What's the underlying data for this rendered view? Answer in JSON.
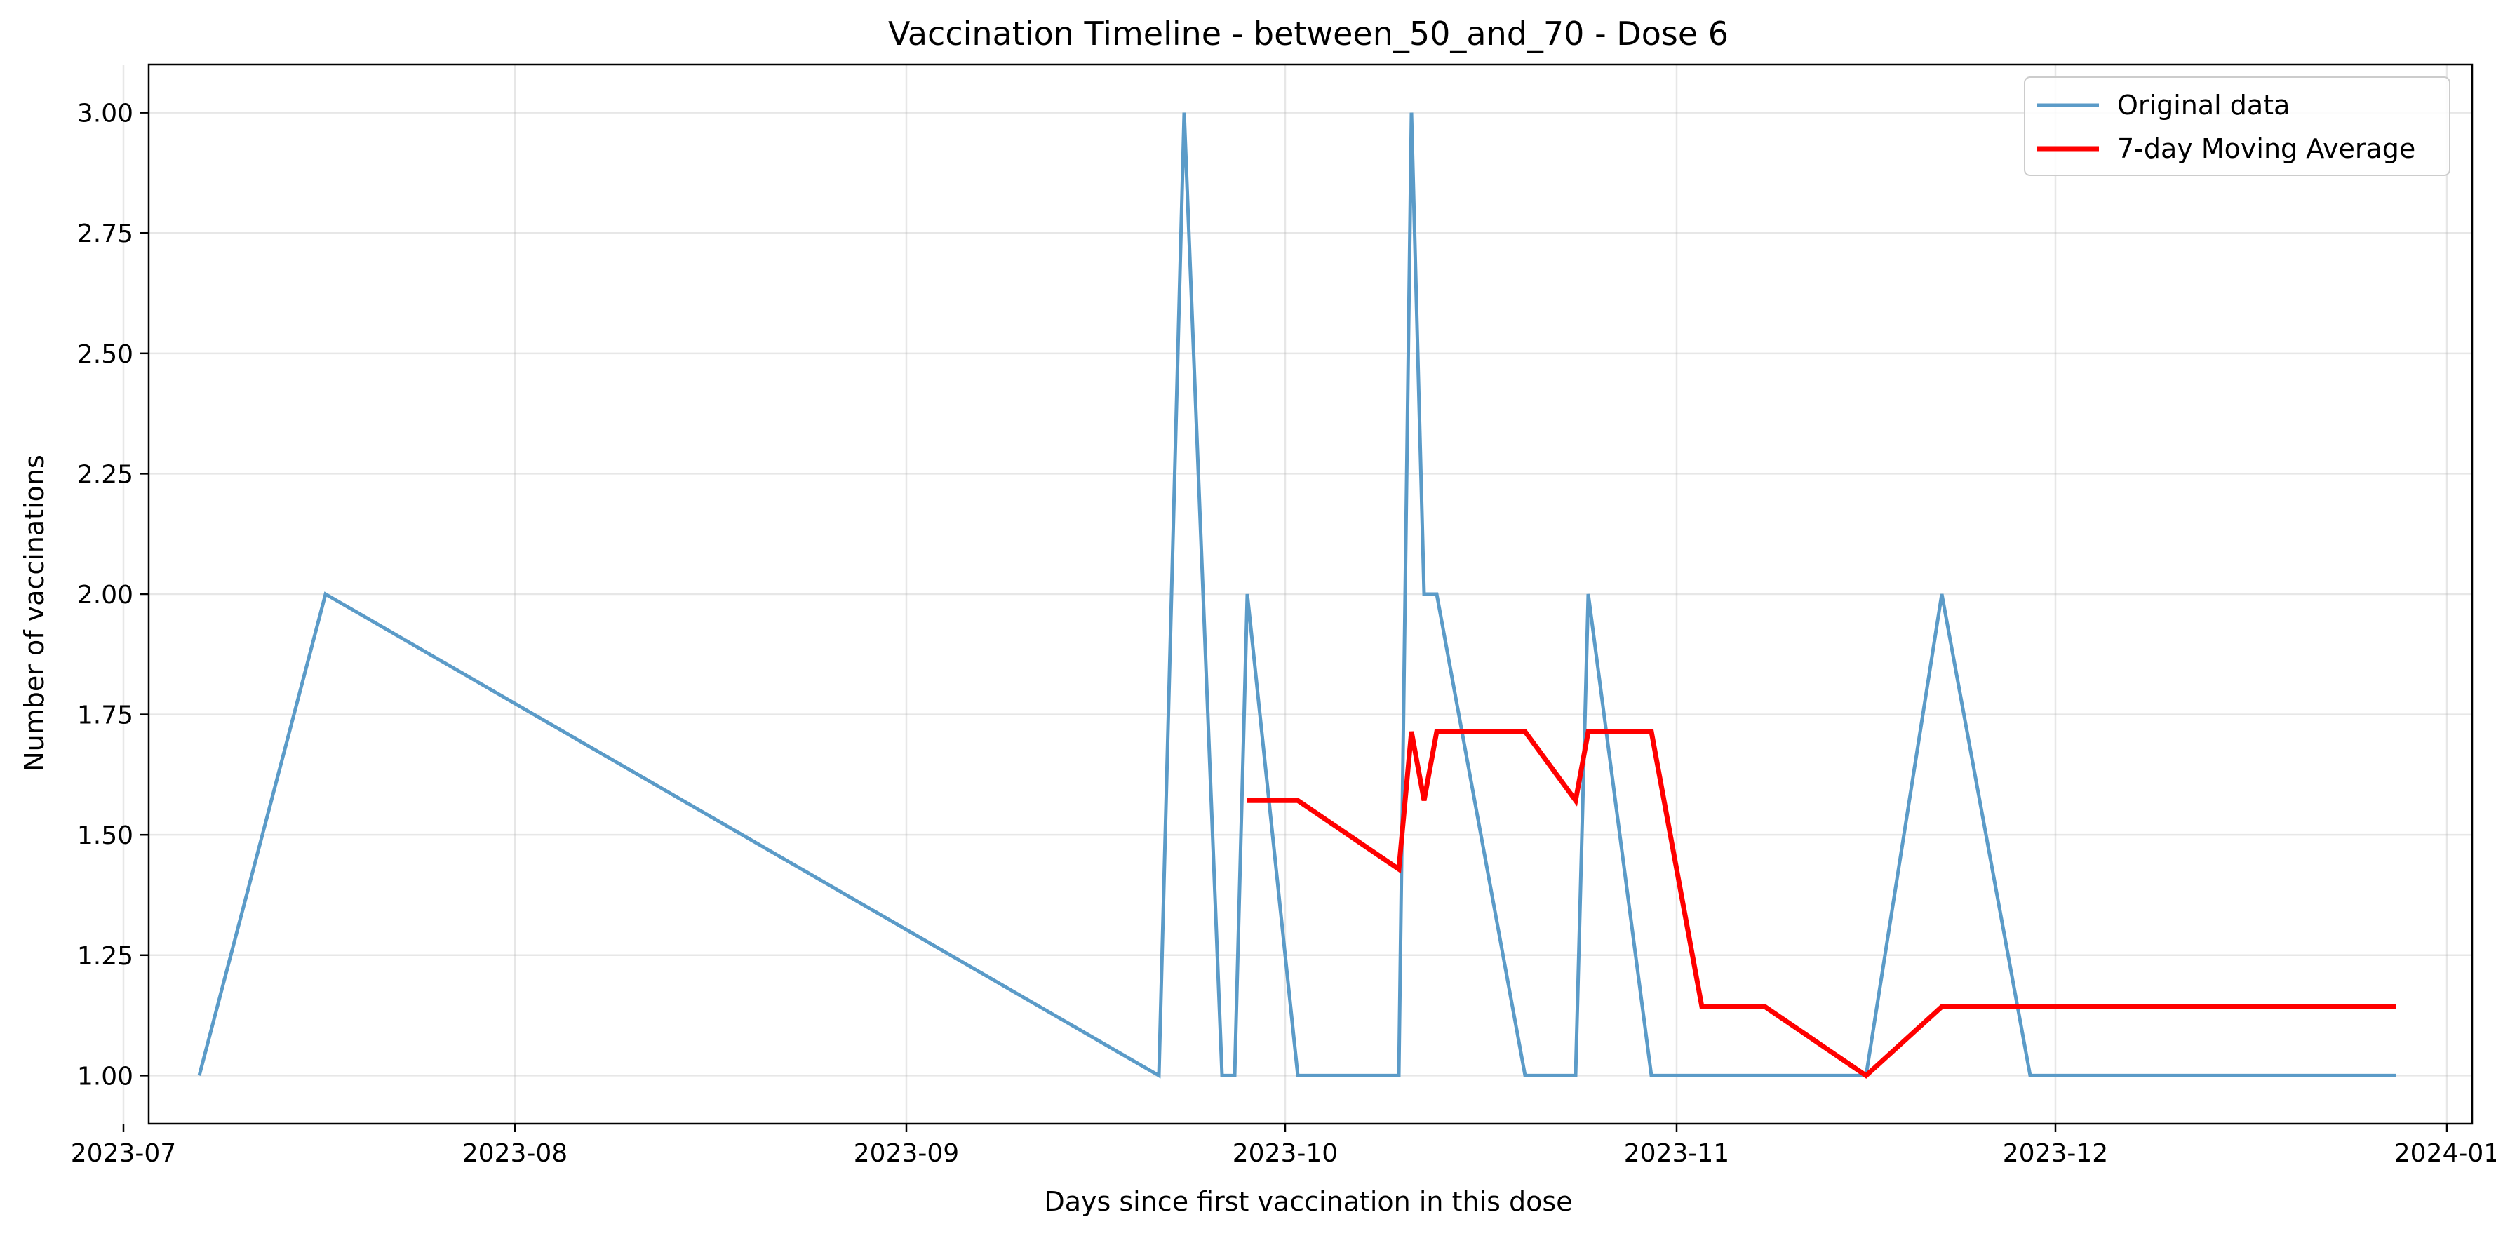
{
  "chart_data": {
    "type": "line",
    "title": "Vaccination Timeline - between_50_and_70 - Dose 6",
    "xlabel": "Days since first vaccination in this dose",
    "ylabel": "Number of vaccinations",
    "x_axis_type": "date",
    "xlim": [
      "2023-07-03",
      "2024-01-03"
    ],
    "ylim": [
      0.9,
      3.1
    ],
    "grid": true,
    "legend_position": "top-right",
    "x_ticks": [
      "2023-07-01",
      "2023-08-01",
      "2023-09-01",
      "2023-10-01",
      "2023-11-01",
      "2023-12-01",
      "2024-01-01"
    ],
    "x_tick_labels": [
      "2023-07",
      "2023-08",
      "2023-09",
      "2023-10",
      "2023-11",
      "2023-12",
      "2024-01"
    ],
    "y_ticks": [
      1.0,
      1.25,
      1.5,
      1.75,
      2.0,
      2.25,
      2.5,
      2.75,
      3.0
    ],
    "y_tick_labels": [
      "1.00",
      "1.25",
      "1.50",
      "1.75",
      "2.00",
      "2.25",
      "2.50",
      "2.75",
      "3.00"
    ],
    "series": [
      {
        "name": "Original data",
        "color": "#5b9bc8",
        "points": [
          [
            "2023-07-07",
            1
          ],
          [
            "2023-07-17",
            2
          ],
          [
            "2023-09-21",
            1
          ],
          [
            "2023-09-23",
            3
          ],
          [
            "2023-09-26",
            1
          ],
          [
            "2023-09-27",
            1
          ],
          [
            "2023-09-28",
            2
          ],
          [
            "2023-10-02",
            1
          ],
          [
            "2023-10-10",
            1
          ],
          [
            "2023-10-11",
            3
          ],
          [
            "2023-10-12",
            2
          ],
          [
            "2023-10-13",
            2
          ],
          [
            "2023-10-20",
            1
          ],
          [
            "2023-10-24",
            1
          ],
          [
            "2023-10-25",
            2
          ],
          [
            "2023-10-30",
            1
          ],
          [
            "2023-11-16",
            1
          ],
          [
            "2023-11-22",
            2
          ],
          [
            "2023-11-29",
            1
          ],
          [
            "2023-12-28",
            1
          ]
        ]
      },
      {
        "name": "7-day Moving Average",
        "color": "#ff0000",
        "points": [
          [
            "2023-09-28",
            1.5714
          ],
          [
            "2023-10-02",
            1.5714
          ],
          [
            "2023-10-10",
            1.4286
          ],
          [
            "2023-10-11",
            1.7143
          ],
          [
            "2023-10-12",
            1.5714
          ],
          [
            "2023-10-13",
            1.7143
          ],
          [
            "2023-10-20",
            1.7143
          ],
          [
            "2023-10-24",
            1.5714
          ],
          [
            "2023-10-25",
            1.7143
          ],
          [
            "2023-10-30",
            1.7143
          ],
          [
            "2023-11-03",
            1.1429
          ],
          [
            "2023-11-08",
            1.1429
          ],
          [
            "2023-11-16",
            1.0
          ],
          [
            "2023-11-22",
            1.1429
          ],
          [
            "2023-11-29",
            1.1429
          ],
          [
            "2023-12-28",
            1.1429
          ]
        ]
      }
    ]
  }
}
